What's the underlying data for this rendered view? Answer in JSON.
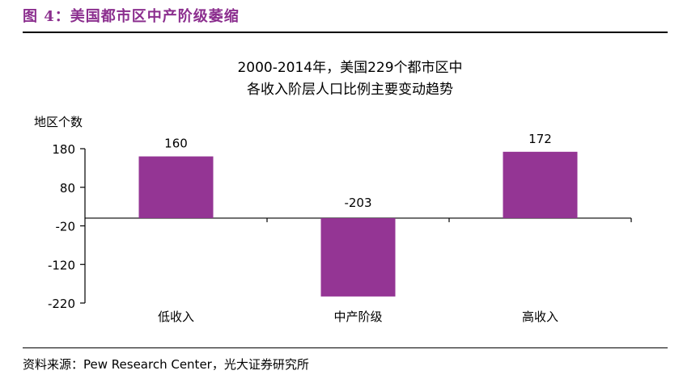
{
  "figure_label": "图 4：美国都市区中产阶级萎缩",
  "source_text": "资料来源：Pew Research Center，光大证券研究所",
  "chart_data": {
    "type": "bar",
    "title_lines": [
      "2000-2014年，美国229个都市区中",
      "各收入阶层人口比例主要变动趋势"
    ],
    "ylabel": "地区个数",
    "categories": [
      "低收入",
      "中产阶级",
      "高收入"
    ],
    "values": [
      160,
      -203,
      172
    ],
    "data_labels": [
      "160",
      "-203",
      "172"
    ],
    "ylim": [
      -220,
      180
    ],
    "yticks": [
      180,
      80,
      -20,
      -120,
      -220
    ],
    "grid": false,
    "legend": "none",
    "bar_color": "#943594"
  }
}
